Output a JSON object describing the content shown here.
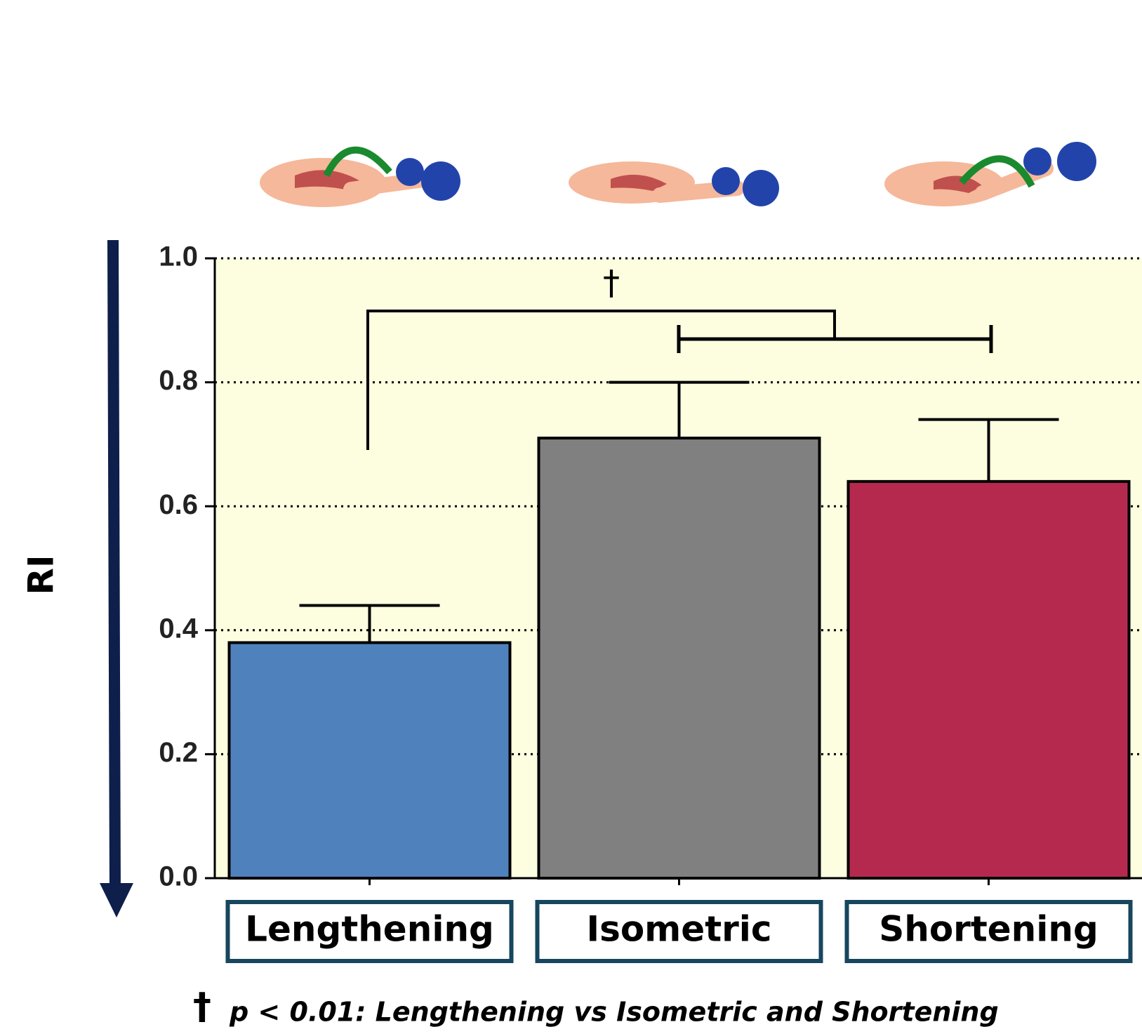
{
  "chart_data": {
    "type": "bar",
    "y_label": "RI",
    "categories": [
      "Lengthening",
      "Isometric",
      "Shortening"
    ],
    "values": [
      0.38,
      0.71,
      0.64
    ],
    "errors": [
      0.06,
      0.09,
      0.1
    ],
    "colors": [
      "#4f81bd",
      "#808080",
      "#b5294f"
    ],
    "ylim": [
      0,
      1
    ],
    "yticks": [
      {
        "value": 0,
        "label": "0.0"
      },
      0.2,
      0.4,
      0.6,
      0.8,
      {
        "value": 1,
        "label": "1.0"
      }
    ],
    "grid": true,
    "annotation": "†",
    "footnote": {
      "symbol": "†",
      "text": "p < 0.01: Lengthening vs Isometric and Shortening"
    }
  }
}
